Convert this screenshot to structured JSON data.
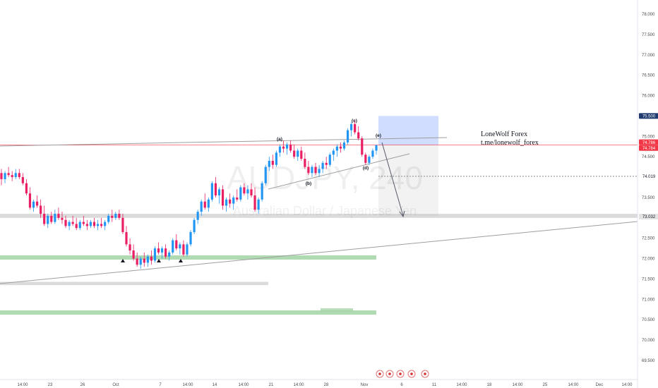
{
  "chart_data": {
    "type": "candlestick",
    "symbol_watermark": "AUDJPY, 240",
    "description_watermark": "Australian Dollar / Japanese Yen",
    "ylim": [
      69.25,
      78.25
    ],
    "y_ticks": [
      "78.000",
      "77.500",
      "77.000",
      "76.500",
      "76.000",
      "75.500",
      "75.000",
      "74.500",
      "74.000",
      "73.500",
      "73.000",
      "72.500",
      "72.000",
      "71.500",
      "71.000",
      "70.500",
      "70.000",
      "69.500"
    ],
    "x_ticks": [
      "14:00",
      "23",
      "26",
      "Oct",
      "7",
      "14:00",
      "14",
      "14:00",
      "21",
      "14:00",
      "28",
      "Nov",
      "6",
      "11",
      "14:00",
      "18",
      "14:00",
      "25",
      "14:00",
      "Dec",
      "14:00"
    ],
    "price_tags": [
      {
        "label": "75.500",
        "value": 75.5,
        "bg": "#1e3a6e",
        "fg": "#ffffff"
      },
      {
        "label": "74.786",
        "value": 74.786,
        "bg": "#f23645",
        "fg": "#ffffff"
      },
      {
        "label": "74.784",
        "value": 74.784,
        "bg": "#f23645",
        "fg": "#ffffff"
      },
      {
        "label": "74.019",
        "value": 74.019,
        "bg": "#ffffff",
        "fg": "#131722"
      },
      {
        "label": "73.032",
        "value": 73.032,
        "bg": "#e3e3e3",
        "fg": "#131722"
      }
    ],
    "wave_labels": [
      "(a)",
      "(b)",
      "(c)",
      "(d)",
      "(e)"
    ],
    "annotation_lines": [
      "LoneWolf Forex",
      "t.me/lonewolf_forex"
    ],
    "key_levels": {
      "current_price": 74.786,
      "dotted_level": 74.019,
      "target_zone": 73.032
    },
    "colors": {
      "up": "#2196f3",
      "down": "#e91e63",
      "current_line": "#f23645",
      "zone": "#2962ff",
      "grid": "#e0e3eb",
      "support_zone": "#66bb6a"
    },
    "candles_ohlc": [
      [
        74.1,
        74.2,
        73.8,
        73.95
      ],
      [
        73.95,
        74.15,
        73.85,
        74.1
      ],
      [
        74.1,
        74.25,
        74.0,
        74.05
      ],
      [
        74.05,
        74.15,
        73.9,
        74.0
      ],
      [
        74.0,
        74.2,
        73.95,
        74.1
      ],
      [
        74.1,
        74.2,
        73.95,
        74.0
      ],
      [
        74.0,
        74.1,
        73.8,
        73.85
      ],
      [
        73.85,
        73.95,
        73.55,
        73.6
      ],
      [
        73.6,
        73.75,
        73.2,
        73.25
      ],
      [
        73.25,
        73.45,
        73.15,
        73.4
      ],
      [
        73.4,
        73.55,
        73.25,
        73.3
      ],
      [
        73.3,
        73.45,
        73.0,
        73.1
      ],
      [
        73.1,
        73.3,
        72.8,
        72.85
      ],
      [
        72.85,
        73.1,
        72.75,
        73.05
      ],
      [
        73.05,
        73.15,
        72.85,
        72.9
      ],
      [
        72.9,
        73.2,
        72.85,
        73.1
      ],
      [
        73.1,
        73.25,
        72.95,
        73.0
      ],
      [
        73.0,
        73.15,
        72.85,
        72.95
      ],
      [
        72.95,
        73.05,
        72.75,
        72.8
      ],
      [
        72.8,
        72.95,
        72.7,
        72.9
      ],
      [
        72.9,
        73.05,
        72.8,
        72.85
      ],
      [
        72.85,
        73.0,
        72.7,
        72.75
      ],
      [
        72.75,
        72.95,
        72.7,
        72.9
      ],
      [
        72.9,
        73.05,
        72.8,
        72.85
      ],
      [
        72.85,
        72.95,
        72.7,
        72.8
      ],
      [
        72.8,
        72.95,
        72.75,
        72.9
      ],
      [
        72.9,
        73.0,
        72.75,
        72.8
      ],
      [
        72.8,
        72.95,
        72.7,
        72.85
      ],
      [
        72.85,
        73.0,
        72.75,
        72.8
      ],
      [
        72.8,
        72.95,
        72.7,
        72.9
      ],
      [
        72.9,
        73.1,
        72.85,
        73.05
      ],
      [
        73.05,
        73.2,
        72.9,
        73.0
      ],
      [
        73.0,
        73.15,
        72.95,
        73.1
      ],
      [
        73.1,
        73.2,
        72.95,
        73.0
      ],
      [
        73.0,
        73.1,
        72.6,
        72.65
      ],
      [
        72.65,
        72.8,
        72.3,
        72.35
      ],
      [
        72.35,
        72.5,
        72.1,
        72.2
      ],
      [
        72.2,
        72.35,
        71.95,
        72.0
      ],
      [
        72.0,
        72.15,
        71.8,
        71.85
      ],
      [
        71.85,
        72.05,
        71.75,
        72.0
      ],
      [
        72.0,
        72.15,
        71.8,
        71.9
      ],
      [
        71.9,
        72.1,
        71.8,
        72.05
      ],
      [
        72.05,
        72.2,
        71.85,
        71.95
      ],
      [
        71.95,
        72.3,
        71.9,
        72.25
      ],
      [
        72.25,
        72.4,
        72.1,
        72.15
      ],
      [
        72.15,
        72.3,
        72.0,
        72.25
      ],
      [
        72.25,
        72.35,
        72.0,
        72.05
      ],
      [
        72.05,
        72.2,
        71.95,
        72.15
      ],
      [
        72.15,
        72.5,
        72.1,
        72.45
      ],
      [
        72.45,
        72.6,
        72.2,
        72.25
      ],
      [
        72.25,
        72.4,
        72.1,
        72.35
      ],
      [
        72.35,
        72.45,
        72.05,
        72.1
      ],
      [
        72.1,
        72.4,
        72.05,
        72.35
      ],
      [
        72.35,
        72.7,
        72.3,
        72.65
      ],
      [
        72.65,
        73.0,
        72.6,
        72.95
      ],
      [
        72.95,
        73.2,
        72.85,
        73.15
      ],
      [
        73.15,
        73.45,
        73.05,
        73.4
      ],
      [
        73.4,
        73.6,
        73.2,
        73.25
      ],
      [
        73.25,
        73.5,
        73.15,
        73.45
      ],
      [
        73.45,
        73.9,
        73.4,
        73.85
      ],
      [
        73.85,
        74.0,
        73.5,
        73.55
      ],
      [
        73.55,
        73.75,
        73.35,
        73.7
      ],
      [
        73.7,
        73.8,
        73.2,
        73.3
      ],
      [
        73.3,
        73.5,
        73.15,
        73.45
      ],
      [
        73.45,
        73.6,
        73.25,
        73.35
      ],
      [
        73.35,
        73.55,
        73.2,
        73.5
      ],
      [
        73.5,
        73.7,
        73.4,
        73.45
      ],
      [
        73.45,
        73.8,
        73.4,
        73.75
      ],
      [
        73.75,
        73.85,
        73.55,
        73.6
      ],
      [
        73.6,
        73.8,
        73.45,
        73.7
      ],
      [
        73.7,
        73.85,
        73.5,
        73.55
      ],
      [
        73.55,
        73.75,
        73.15,
        73.2
      ],
      [
        73.2,
        73.5,
        73.1,
        73.45
      ],
      [
        73.45,
        73.9,
        73.4,
        73.85
      ],
      [
        73.85,
        74.3,
        73.8,
        74.25
      ],
      [
        74.25,
        74.5,
        74.15,
        74.4
      ],
      [
        74.4,
        74.55,
        74.2,
        74.3
      ],
      [
        74.3,
        74.65,
        74.25,
        74.6
      ],
      [
        74.6,
        74.8,
        74.5,
        74.75
      ],
      [
        74.75,
        74.9,
        74.6,
        74.7
      ],
      [
        74.7,
        74.85,
        74.55,
        74.8
      ],
      [
        74.8,
        74.9,
        74.6,
        74.65
      ],
      [
        74.65,
        74.8,
        74.45,
        74.5
      ],
      [
        74.5,
        74.7,
        74.4,
        74.65
      ],
      [
        74.65,
        74.75,
        74.4,
        74.45
      ],
      [
        74.45,
        74.6,
        74.2,
        74.25
      ],
      [
        74.25,
        74.4,
        74.05,
        74.1
      ],
      [
        74.1,
        74.3,
        74.0,
        74.25
      ],
      [
        74.25,
        74.35,
        74.05,
        74.1
      ],
      [
        74.1,
        74.3,
        74.0,
        74.2
      ],
      [
        74.2,
        74.4,
        74.1,
        74.35
      ],
      [
        74.35,
        74.5,
        74.2,
        74.3
      ],
      [
        74.3,
        74.6,
        74.25,
        74.55
      ],
      [
        74.55,
        74.7,
        74.4,
        74.65
      ],
      [
        74.65,
        74.8,
        74.5,
        74.75
      ],
      [
        74.75,
        74.85,
        74.6,
        74.7
      ],
      [
        74.7,
        74.9,
        74.65,
        74.85
      ],
      [
        74.85,
        75.2,
        74.8,
        75.15
      ],
      [
        75.15,
        75.35,
        75.0,
        75.3
      ],
      [
        75.3,
        75.4,
        75.05,
        75.1
      ],
      [
        75.1,
        75.25,
        74.9,
        74.95
      ],
      [
        74.95,
        75.0,
        74.5,
        74.55
      ],
      [
        74.55,
        74.6,
        74.3,
        74.35
      ],
      [
        74.35,
        74.55,
        74.3,
        74.5
      ],
      [
        74.5,
        74.7,
        74.45,
        74.65
      ],
      [
        74.65,
        74.8,
        74.55,
        74.78
      ]
    ]
  }
}
